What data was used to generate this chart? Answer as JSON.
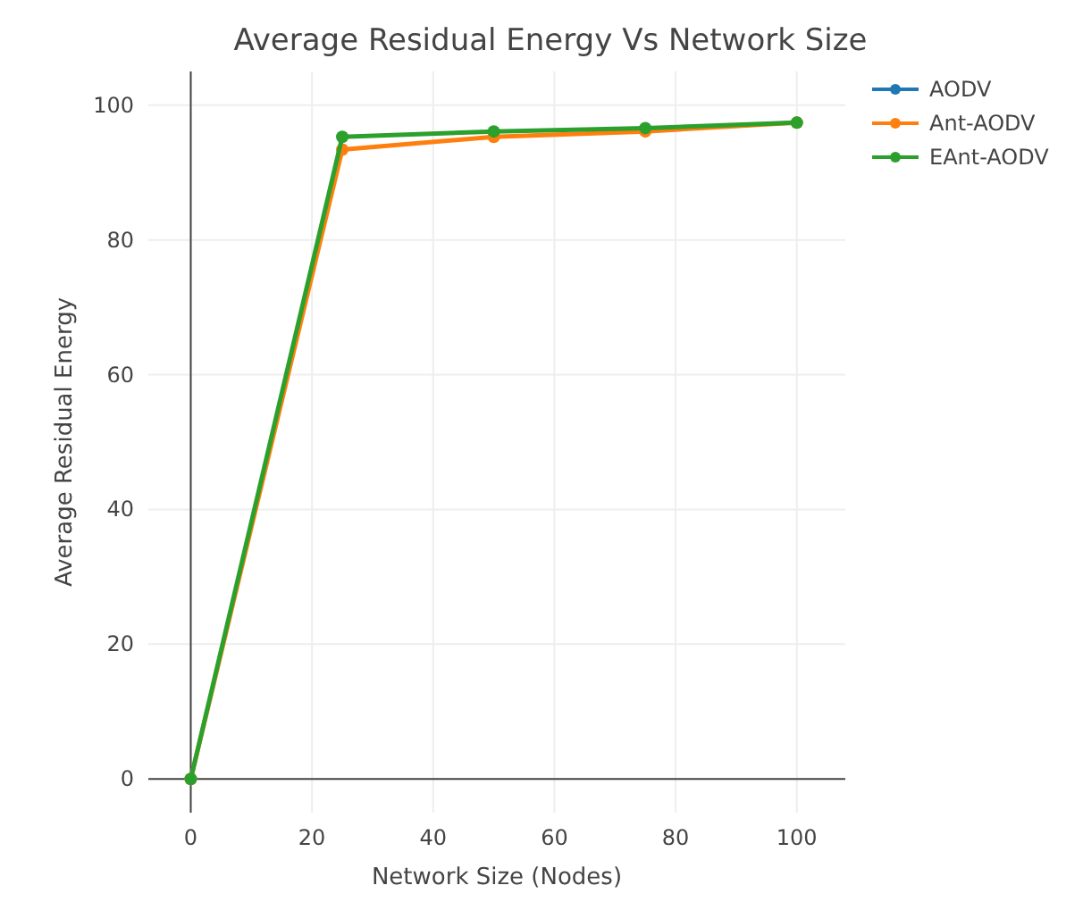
{
  "chart_data": {
    "type": "line",
    "title": "Average Residual Energy Vs Network Size",
    "xlabel": "Network Size (Nodes)",
    "ylabel": "Average Residual Energy",
    "x": [
      0,
      25,
      50,
      75,
      100
    ],
    "series": [
      {
        "name": "AODV",
        "color": "#1f77b4",
        "values": [
          null,
          null,
          null,
          null,
          null
        ]
      },
      {
        "name": "Ant-AODV",
        "color": "#ff7f0e",
        "values": [
          0,
          93.4,
          95.3,
          96.1,
          97.4
        ]
      },
      {
        "name": "EAnt-AODV",
        "color": "#2ca02c",
        "values": [
          0,
          95.3,
          96.1,
          96.6,
          97.4
        ]
      }
    ],
    "xlim": [
      -7,
      108
    ],
    "xticks": [
      0,
      20,
      40,
      60,
      80,
      100
    ],
    "ylim": [
      -5,
      105
    ],
    "yticks": [
      0,
      20,
      40,
      60,
      80,
      100
    ],
    "grid": true,
    "legend": "top right",
    "marker": "circle",
    "line_style": "solid"
  }
}
